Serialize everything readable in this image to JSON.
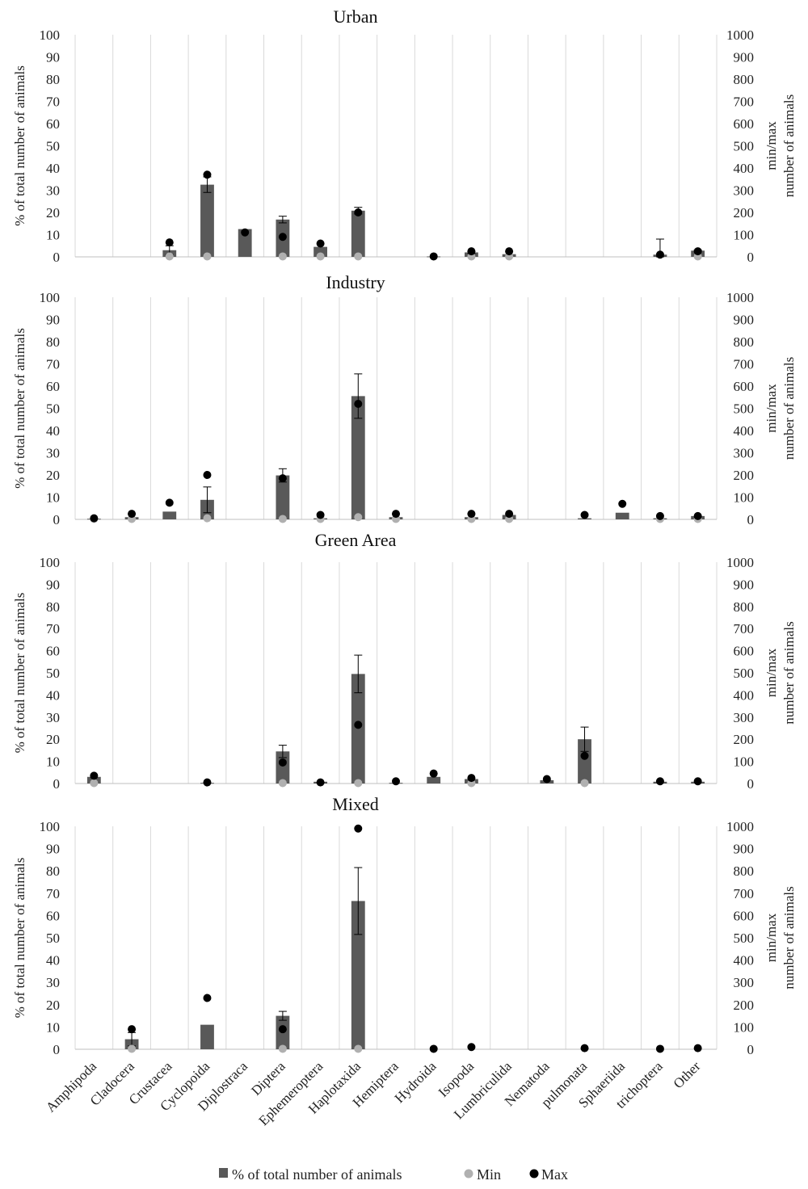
{
  "colors": {
    "bar": "#595959",
    "min": "#b0b0b0",
    "max": "#000000",
    "grid": "#d9d9d9",
    "axis": "#bfbfbf"
  },
  "legend": {
    "bar_label": "% of total number of animals",
    "min_label": "Min",
    "max_label": "Max"
  },
  "chart_data": [
    {
      "type": "bar",
      "title": "Urban",
      "ylabel": "% of total number of animals",
      "y2label_line1": "min/max",
      "y2label_line2": "number of animals",
      "ylim": [
        0,
        100
      ],
      "y2lim": [
        0,
        1000
      ],
      "yticks": [
        "0",
        "10",
        "20",
        "30",
        "40",
        "50",
        "60",
        "70",
        "80",
        "90",
        "100"
      ],
      "y2ticks": [
        "0",
        "100",
        "200",
        "300",
        "400",
        "500",
        "600",
        "700",
        "800",
        "900",
        "1000"
      ],
      "categories": [
        "Amphipoda",
        "Cladocera",
        "Crustacea",
        "Cyclopoida",
        "Diplostraca",
        "Diptera",
        "Ephemeroptera",
        "Haplotaxida",
        "Hemiptera",
        "Hydroida",
        "Isopoda",
        "Lumbriculida",
        "Nematoda",
        "pulmonata",
        "Sphaeriida",
        "trichoptera",
        "Other"
      ],
      "series": [
        {
          "name": "% of total number of animals",
          "values": [
            null,
            null,
            3,
            32.5,
            12.5,
            16.8,
            4.5,
            20.8,
            null,
            0.2,
            2,
            1.2,
            null,
            null,
            null,
            1,
            2.8
          ],
          "error": [
            null,
            null,
            2,
            3.5,
            0,
            1.5,
            0,
            1.5,
            null,
            null,
            0.5,
            0,
            null,
            null,
            null,
            7,
            0.3
          ]
        },
        {
          "name": "Min",
          "values": [
            null,
            null,
            2,
            2,
            null,
            2,
            2,
            2,
            null,
            null,
            2,
            2,
            null,
            null,
            null,
            null,
            2
          ]
        },
        {
          "name": "Max",
          "values": [
            null,
            null,
            65,
            370,
            110,
            90,
            60,
            200,
            null,
            2,
            25,
            25,
            null,
            null,
            null,
            10,
            25
          ]
        }
      ]
    },
    {
      "type": "bar",
      "title": "Industry",
      "ylabel": "% of total number of animals",
      "y2label_line1": "min/max",
      "y2label_line2": "number of animals",
      "ylim": [
        0,
        100
      ],
      "y2lim": [
        0,
        1000
      ],
      "yticks": [
        "0",
        "10",
        "20",
        "30",
        "40",
        "50",
        "60",
        "70",
        "80",
        "90",
        "100"
      ],
      "y2ticks": [
        "0",
        "100",
        "200",
        "300",
        "400",
        "500",
        "600",
        "700",
        "800",
        "900",
        "1000"
      ],
      "categories": [
        "Amphipoda",
        "Cladocera",
        "Crustacea",
        "Cyclopoida",
        "Diplostraca",
        "Diptera",
        "Ephemeroptera",
        "Haplotaxida",
        "Hemiptera",
        "Hydroida",
        "Isopoda",
        "Lumbriculida",
        "Nematoda",
        "pulmonata",
        "Sphaeriida",
        "trichoptera",
        "Other"
      ],
      "series": [
        {
          "name": "% of total number of animals",
          "values": [
            0.3,
            1,
            3.5,
            8.8,
            null,
            19.8,
            0.5,
            55.5,
            1,
            null,
            1,
            2,
            null,
            0.5,
            3,
            0.5,
            1.5
          ],
          "error": [
            0,
            0,
            0,
            5.8,
            null,
            3,
            0,
            10,
            0,
            null,
            0,
            0,
            null,
            0,
            0,
            0,
            0
          ]
        },
        {
          "name": "Min",
          "values": [
            2,
            2,
            null,
            5,
            null,
            2,
            2,
            10,
            2,
            null,
            2,
            2,
            null,
            null,
            null,
            2,
            2
          ]
        },
        {
          "name": "Max",
          "values": [
            5,
            25,
            75,
            200,
            null,
            185,
            20,
            520,
            25,
            null,
            25,
            25,
            null,
            20,
            70,
            15,
            15
          ]
        }
      ]
    },
    {
      "type": "bar",
      "title": "Green Area",
      "ylabel": "% of total number of animals",
      "y2label_line1": "min/max",
      "y2label_line2": "number of animals",
      "ylim": [
        0,
        100
      ],
      "y2lim": [
        0,
        1000
      ],
      "yticks": [
        "0",
        "10",
        "20",
        "30",
        "40",
        "50",
        "60",
        "70",
        "80",
        "90",
        "100"
      ],
      "y2ticks": [
        "0",
        "100",
        "200",
        "300",
        "400",
        "500",
        "600",
        "700",
        "800",
        "900",
        "1000"
      ],
      "categories": [
        "Amphipoda",
        "Cladocera",
        "Crustacea",
        "Cyclopoida",
        "Diplostraca",
        "Diptera",
        "Ephemeroptera",
        "Haplotaxida",
        "Hemiptera",
        "Hydroida",
        "Isopoda",
        "Lumbriculida",
        "Nematoda",
        "pulmonata",
        "Sphaeriida",
        "trichoptera",
        "Other"
      ],
      "series": [
        {
          "name": "% of total number of animals",
          "values": [
            3,
            null,
            null,
            0.3,
            null,
            14.5,
            0.8,
            49.5,
            0.3,
            3,
            2,
            null,
            1.5,
            20,
            null,
            0.8,
            0.8
          ],
          "error": [
            0,
            null,
            null,
            0,
            null,
            2.8,
            0,
            8.5,
            0,
            0,
            0,
            null,
            0,
            5.5,
            null,
            0,
            0
          ]
        },
        {
          "name": "Min",
          "values": [
            2,
            null,
            null,
            null,
            null,
            2,
            null,
            2,
            null,
            null,
            2,
            null,
            null,
            2,
            null,
            null,
            null
          ]
        },
        {
          "name": "Max",
          "values": [
            35,
            null,
            null,
            5,
            null,
            95,
            5,
            265,
            10,
            45,
            25,
            null,
            20,
            125,
            null,
            10,
            10
          ]
        }
      ]
    },
    {
      "type": "bar",
      "title": "Mixed",
      "ylabel": "% of total number of animals",
      "y2label_line1": "min/max",
      "y2label_line2": "number of animals",
      "ylim": [
        0,
        100
      ],
      "y2lim": [
        0,
        1000
      ],
      "yticks": [
        "0",
        "10",
        "20",
        "30",
        "40",
        "50",
        "60",
        "70",
        "80",
        "90",
        "100"
      ],
      "y2ticks": [
        "0",
        "100",
        "200",
        "300",
        "400",
        "500",
        "600",
        "700",
        "800",
        "900",
        "1000"
      ],
      "categories": [
        "Amphipoda",
        "Cladocera",
        "Crustacea",
        "Cyclopoida",
        "Diplostraca",
        "Diptera",
        "Ephemeroptera",
        "Haplotaxida",
        "Hemiptera",
        "Hydroida",
        "Isopoda",
        "Lumbriculida",
        "Nematoda",
        "pulmonata",
        "Sphaeriida",
        "trichoptera",
        "Other"
      ],
      "series": [
        {
          "name": "% of total number of animals",
          "values": [
            null,
            4.5,
            null,
            11,
            null,
            15,
            null,
            66.5,
            null,
            null,
            null,
            null,
            null,
            null,
            null,
            null,
            null
          ],
          "error": [
            null,
            3,
            null,
            0,
            null,
            2,
            null,
            15,
            null,
            null,
            null,
            null,
            null,
            null,
            null,
            null,
            null
          ]
        },
        {
          "name": "Min",
          "values": [
            null,
            2,
            null,
            null,
            null,
            2,
            null,
            2,
            null,
            null,
            null,
            null,
            null,
            null,
            null,
            null,
            null
          ]
        },
        {
          "name": "Max",
          "values": [
            null,
            90,
            null,
            230,
            null,
            90,
            null,
            990,
            null,
            2,
            10,
            null,
            null,
            5,
            null,
            2,
            5
          ]
        }
      ]
    }
  ]
}
